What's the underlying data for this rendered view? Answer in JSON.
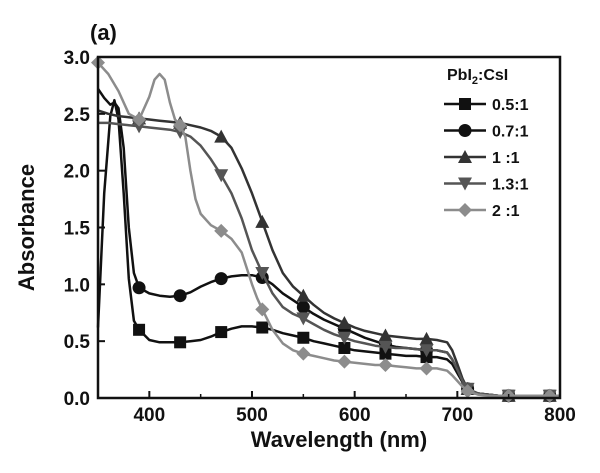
{
  "chart_data": {
    "type": "line",
    "panel_label": "(a)",
    "xlabel": "Wavelength (nm)",
    "ylabel": "Absorbance",
    "xlim": [
      350,
      800
    ],
    "ylim": [
      0,
      3.0
    ],
    "xticks": [
      400,
      500,
      600,
      700,
      800
    ],
    "yticks": [
      0.0,
      0.5,
      1.0,
      1.5,
      2.0,
      2.5,
      3.0
    ],
    "ytick_labels": [
      "0.0",
      "0.5",
      "1.0",
      "1.5",
      "2.0",
      "2.5",
      "3.0"
    ],
    "legend_title": {
      "main": "PbI",
      "sub": "2",
      "rest": ":CsI"
    },
    "legend_position": "top-right",
    "series": [
      {
        "name": "0.5:1",
        "color": "#111111",
        "marker": "square",
        "x": [
          350,
          356,
          362,
          366,
          370,
          375,
          380,
          385,
          390,
          400,
          410,
          420,
          430,
          440,
          450,
          460,
          470,
          480,
          490,
          500,
          510,
          520,
          530,
          540,
          550,
          560,
          570,
          580,
          590,
          600,
          610,
          620,
          630,
          640,
          650,
          660,
          670,
          680,
          690,
          695,
          700,
          705,
          710,
          720,
          730,
          740,
          750,
          760,
          770,
          780,
          790,
          800
        ],
        "y": [
          0.62,
          1.8,
          2.48,
          2.62,
          2.45,
          1.8,
          1.05,
          0.68,
          0.6,
          0.51,
          0.49,
          0.49,
          0.49,
          0.5,
          0.51,
          0.54,
          0.58,
          0.61,
          0.63,
          0.63,
          0.62,
          0.6,
          0.57,
          0.55,
          0.53,
          0.5,
          0.48,
          0.46,
          0.44,
          0.42,
          0.41,
          0.4,
          0.39,
          0.38,
          0.37,
          0.37,
          0.36,
          0.36,
          0.34,
          0.3,
          0.22,
          0.14,
          0.08,
          0.04,
          0.03,
          0.02,
          0.02,
          0.02,
          0.02,
          0.02,
          0.02,
          0.02
        ],
        "marker_x": [
          390,
          430,
          470,
          510,
          550,
          590,
          630,
          670,
          710,
          750,
          790
        ],
        "marker_y": [
          0.6,
          0.49,
          0.58,
          0.62,
          0.53,
          0.44,
          0.39,
          0.36,
          0.08,
          0.02,
          0.02
        ]
      },
      {
        "name": "0.7:1",
        "color": "#111111",
        "marker": "circle",
        "x": [
          350,
          356,
          362,
          366,
          370,
          375,
          380,
          385,
          390,
          400,
          410,
          420,
          430,
          440,
          450,
          460,
          470,
          480,
          490,
          500,
          510,
          520,
          530,
          540,
          550,
          560,
          570,
          580,
          590,
          600,
          610,
          620,
          630,
          640,
          650,
          660,
          670,
          680,
          690,
          695,
          700,
          705,
          710,
          720,
          730,
          740,
          750,
          760,
          770,
          780,
          790,
          800
        ],
        "y": [
          2.72,
          2.64,
          2.58,
          2.6,
          2.55,
          2.2,
          1.5,
          1.1,
          0.97,
          0.92,
          0.9,
          0.89,
          0.9,
          0.93,
          0.98,
          1.02,
          1.05,
          1.07,
          1.08,
          1.08,
          1.06,
          1.0,
          0.92,
          0.86,
          0.8,
          0.74,
          0.69,
          0.65,
          0.61,
          0.57,
          0.53,
          0.5,
          0.47,
          0.45,
          0.44,
          0.43,
          0.42,
          0.42,
          0.4,
          0.34,
          0.25,
          0.15,
          0.08,
          0.04,
          0.03,
          0.02,
          0.02,
          0.02,
          0.02,
          0.02,
          0.02,
          0.02
        ],
        "marker_x": [
          390,
          430,
          470,
          510,
          550,
          590,
          630,
          670,
          710,
          750,
          790
        ],
        "marker_y": [
          0.97,
          0.9,
          1.05,
          1.06,
          0.8,
          0.61,
          0.47,
          0.42,
          0.08,
          0.02,
          0.02
        ]
      },
      {
        "name": "1 :1",
        "color": "#333333",
        "marker": "triangle-up",
        "x": [
          350,
          360,
          370,
          380,
          390,
          400,
          410,
          420,
          430,
          440,
          450,
          460,
          470,
          480,
          490,
          500,
          510,
          520,
          530,
          540,
          550,
          560,
          570,
          580,
          590,
          600,
          610,
          620,
          630,
          640,
          650,
          660,
          670,
          680,
          690,
          695,
          700,
          705,
          710,
          720,
          730,
          740,
          750,
          760,
          770,
          780,
          790,
          800
        ],
        "y": [
          2.53,
          2.5,
          2.48,
          2.47,
          2.46,
          2.45,
          2.44,
          2.43,
          2.42,
          2.4,
          2.38,
          2.35,
          2.3,
          2.2,
          2.02,
          1.8,
          1.55,
          1.3,
          1.1,
          0.98,
          0.9,
          0.82,
          0.75,
          0.7,
          0.66,
          0.62,
          0.59,
          0.57,
          0.55,
          0.54,
          0.53,
          0.52,
          0.52,
          0.51,
          0.49,
          0.42,
          0.3,
          0.17,
          0.08,
          0.04,
          0.03,
          0.02,
          0.02,
          0.02,
          0.02,
          0.02,
          0.02,
          0.02
        ],
        "marker_x": [
          390,
          430,
          470,
          510,
          550,
          590,
          630,
          670,
          710,
          750,
          790
        ],
        "marker_y": [
          2.46,
          2.42,
          2.3,
          1.55,
          0.9,
          0.66,
          0.55,
          0.52,
          0.08,
          0.02,
          0.02
        ]
      },
      {
        "name": "1.3:1",
        "color": "#555555",
        "marker": "triangle-down",
        "x": [
          350,
          360,
          370,
          380,
          390,
          400,
          410,
          420,
          430,
          440,
          450,
          460,
          470,
          480,
          490,
          500,
          510,
          520,
          530,
          540,
          550,
          560,
          570,
          580,
          590,
          600,
          610,
          620,
          630,
          640,
          650,
          660,
          670,
          680,
          690,
          695,
          700,
          705,
          710,
          720,
          730,
          740,
          750,
          760,
          770,
          780,
          790,
          800
        ],
        "y": [
          2.42,
          2.42,
          2.41,
          2.4,
          2.39,
          2.38,
          2.37,
          2.36,
          2.34,
          2.3,
          2.22,
          2.1,
          1.96,
          1.8,
          1.58,
          1.3,
          1.1,
          0.92,
          0.8,
          0.74,
          0.7,
          0.65,
          0.6,
          0.56,
          0.53,
          0.5,
          0.48,
          0.46,
          0.45,
          0.44,
          0.44,
          0.43,
          0.42,
          0.42,
          0.4,
          0.34,
          0.25,
          0.15,
          0.08,
          0.04,
          0.03,
          0.02,
          0.02,
          0.02,
          0.02,
          0.02,
          0.02,
          0.02
        ],
        "marker_x": [
          390,
          430,
          470,
          510,
          550,
          590,
          630,
          670,
          710,
          750,
          790
        ],
        "marker_y": [
          2.39,
          2.34,
          1.96,
          1.1,
          0.7,
          0.53,
          0.45,
          0.42,
          0.08,
          0.02,
          0.02
        ]
      },
      {
        "name": "2 :1",
        "color": "#8c8c8c",
        "marker": "diamond",
        "x": [
          350,
          360,
          370,
          380,
          390,
          400,
          405,
          410,
          415,
          420,
          425,
          430,
          435,
          440,
          445,
          450,
          460,
          470,
          480,
          490,
          500,
          505,
          510,
          520,
          530,
          540,
          550,
          560,
          570,
          580,
          590,
          600,
          610,
          620,
          630,
          640,
          650,
          660,
          670,
          680,
          690,
          695,
          700,
          705,
          710,
          720,
          730,
          740,
          750,
          760,
          770,
          780,
          790,
          800
        ],
        "y": [
          2.95,
          2.85,
          2.7,
          2.5,
          2.45,
          2.65,
          2.8,
          2.85,
          2.8,
          2.6,
          2.45,
          2.4,
          2.3,
          2.0,
          1.75,
          1.62,
          1.52,
          1.47,
          1.4,
          1.28,
          1.0,
          0.88,
          0.78,
          0.6,
          0.48,
          0.42,
          0.39,
          0.37,
          0.35,
          0.33,
          0.32,
          0.31,
          0.3,
          0.29,
          0.29,
          0.28,
          0.27,
          0.26,
          0.26,
          0.26,
          0.24,
          0.2,
          0.15,
          0.1,
          0.06,
          0.03,
          0.02,
          0.02,
          0.02,
          0.02,
          0.02,
          0.02,
          0.02,
          0.02
        ],
        "marker_x": [
          350,
          390,
          430,
          470,
          510,
          550,
          590,
          630,
          670,
          710,
          750,
          790
        ],
        "marker_y": [
          2.95,
          2.45,
          2.4,
          1.47,
          0.78,
          0.39,
          0.32,
          0.29,
          0.26,
          0.06,
          0.02,
          0.02
        ]
      }
    ]
  }
}
